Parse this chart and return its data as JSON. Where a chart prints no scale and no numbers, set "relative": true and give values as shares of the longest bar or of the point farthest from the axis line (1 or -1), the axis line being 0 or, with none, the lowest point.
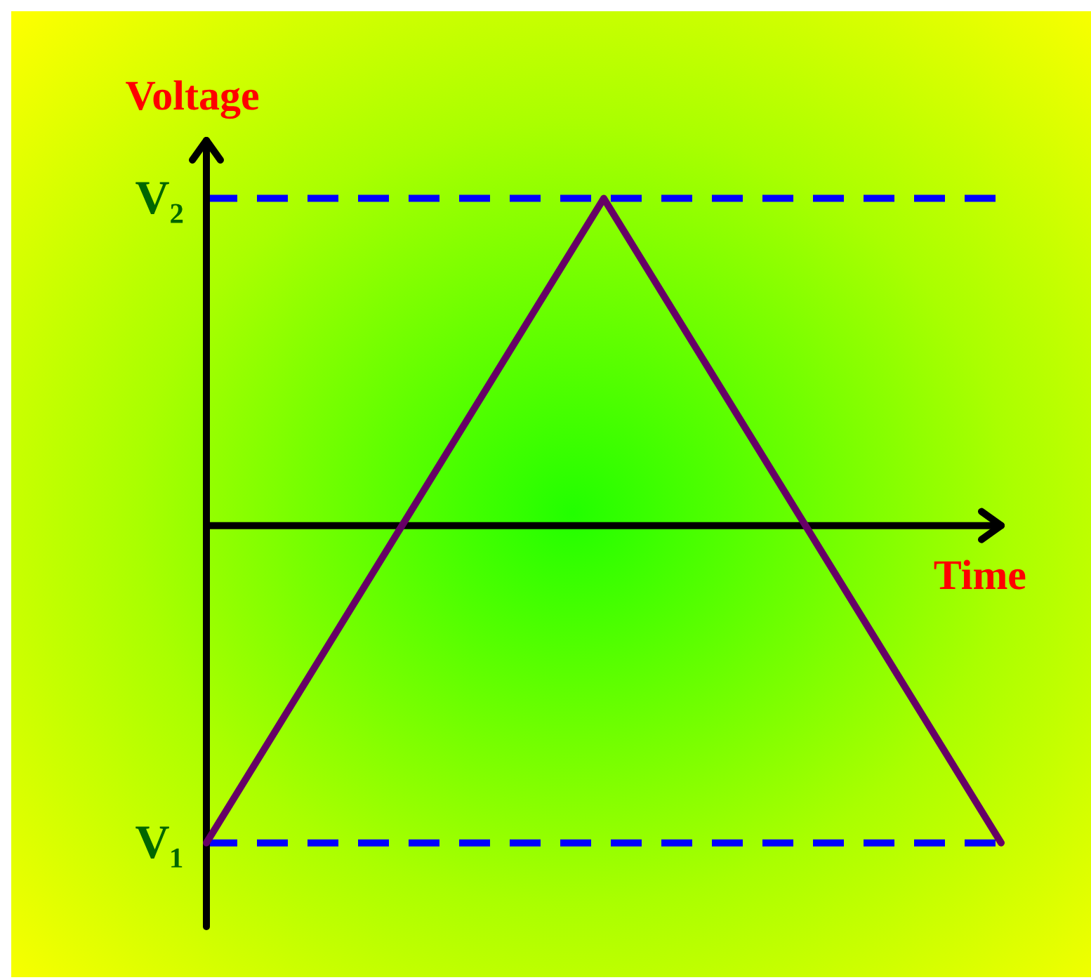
{
  "chart_data": {
    "type": "line",
    "relative": true,
    "xlabel": "Time",
    "ylabel": "Voltage",
    "categories": [
      null,
      null,
      null
    ],
    "series": [
      {
        "color": "#660066",
        "values": [
          -0.97,
          1,
          -0.97
        ]
      }
    ],
    "ref_lines": [
      {
        "axis": "y",
        "value": 1,
        "label": "V₂",
        "color": "#0000ff",
        "line_style": "dashed"
      },
      {
        "axis": "y",
        "value": -0.97,
        "label": "V₁",
        "color": "#0000ff",
        "line_style": "dashed"
      }
    ],
    "grid": false,
    "legend": false,
    "marker": "none",
    "line_style": "solid",
    "tick_labels": false
  }
}
